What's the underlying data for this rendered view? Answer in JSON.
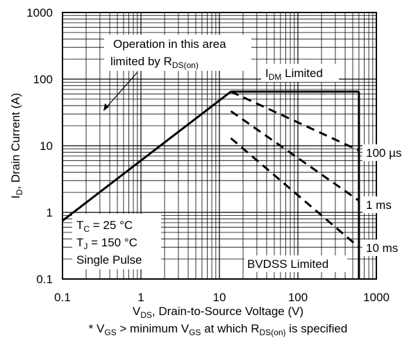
{
  "chart_data": {
    "type": "line",
    "title": "",
    "xlabel": {
      "prefix": "V",
      "sub": "DS",
      "suffix": ", Drain-to-Source Voltage (V)"
    },
    "ylabel": {
      "prefix": "I",
      "sub": "D",
      "suffix": ", Drain Current (A)"
    },
    "x_scale": "log",
    "y_scale": "log",
    "xlim": [
      0.1,
      1000
    ],
    "ylim": [
      0.1,
      1000
    ],
    "grid": true,
    "x_ticks": [
      "0.1",
      "1",
      "10",
      "100",
      "1000"
    ],
    "y_ticks": [
      "0.1",
      "1",
      "10",
      "100",
      "1000"
    ],
    "series": [
      {
        "style": "solid",
        "x": [
          0.1,
          14
        ],
        "y": [
          0.75,
          65
        ]
      },
      {
        "style": "solid",
        "x": [
          14,
          600
        ],
        "y": [
          65,
          65
        ]
      },
      {
        "style": "solid",
        "x": [
          600,
          600
        ],
        "y": [
          65,
          0.1
        ]
      },
      {
        "name": "100 µs",
        "style": "dashed",
        "x": [
          14,
          600
        ],
        "y": [
          65,
          8.5
        ]
      },
      {
        "name": "1 ms",
        "style": "dashed",
        "x": [
          14,
          600
        ],
        "y": [
          33,
          1.5
        ]
      },
      {
        "name": "10 ms",
        "style": "dashed",
        "x": [
          14,
          600
        ],
        "y": [
          13,
          0.3
        ]
      }
    ],
    "annotations": {
      "operation_line1": "Operation in this area",
      "operation_line2_prefix": "limited by R",
      "operation_line2_sub": "DS(on)",
      "idm_prefix": "I",
      "idm_sub": "DM",
      "idm_suffix": " Limited",
      "bvdss": "BVDSS Limited",
      "tc_prefix": "T",
      "tc_sub": "C",
      "tc_suffix": " = 25 °C",
      "tj_prefix": "T",
      "tj_sub": "J",
      "tj_suffix": " = 150 °C",
      "single_pulse": "Single Pulse",
      "footnote": {
        "p1": "* V",
        "s1": "GS",
        "p2": " > minimum V",
        "s2": "GS",
        "p3": " at which R",
        "s3": "DS(on)",
        "p4": " is specified"
      }
    }
  }
}
